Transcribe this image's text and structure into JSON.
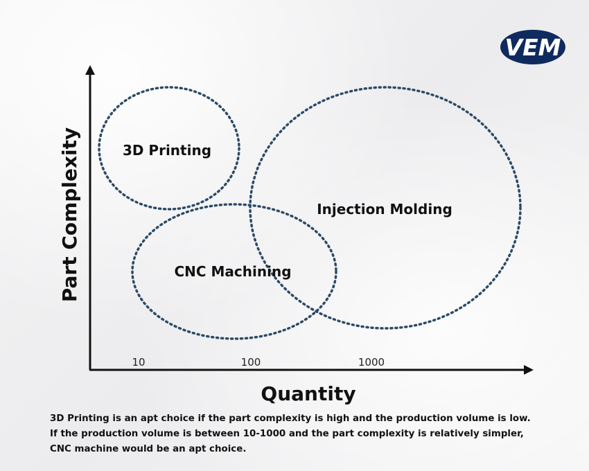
{
  "logo": {
    "text": "VEM",
    "color": "#0f2a5e"
  },
  "axes": {
    "x_label": "Quantity",
    "y_label": "Part Complexity"
  },
  "ticks": [
    "10",
    "100",
    "1000"
  ],
  "regions": [
    {
      "label": "3D Printing"
    },
    {
      "label": "CNC Machining"
    },
    {
      "label": "Injection Molding"
    }
  ],
  "colors": {
    "ellipse_stroke": "#2c4a66",
    "axis": "#111111"
  },
  "caption": {
    "lines": [
      "3D Printing is an apt choice if the part complexity is high and the production volume is low.",
      "If the production volume is between 10-1000 and the part complexity is relatively simpler,",
      "CNC machine would be an apt choice."
    ]
  }
}
